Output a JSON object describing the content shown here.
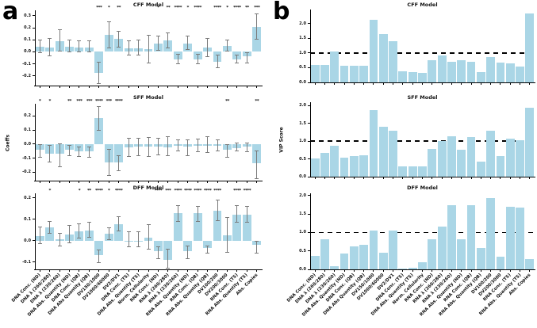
{
  "figure": {
    "panel_a": {
      "label": "a"
    },
    "panel_b": {
      "label": "b"
    }
  },
  "colors": {
    "bar": "#aad6e6",
    "error_bar": "#7a7a7a",
    "ref_line": "#000000",
    "axis": "#000000",
    "text": "#111111"
  },
  "categories": [
    "DNA Conc. (ND)",
    "DNA λ (260/280)",
    "DNA λ (230/260)",
    "DNA Abs. Quantity (ND)",
    "DNA Conc. (QB)",
    "DNA Abs Quantity (QB)",
    "DV150/1000",
    "DV1000/60000",
    "DV2/DV1",
    "DNA Conc. (TS)",
    "DNA Abs. Quantity (TS)",
    "Norm. Cellularity",
    "RNA Conc. (ND)",
    "RNA λ (260/280)",
    "RNA λ (230/260)",
    "RNA Abs. Quantity (ND)",
    "RNA Conc. (QB)",
    "RNA Abs. Quantity (QB)",
    "DV100/200",
    "DV200/3000",
    "RNA Conc. (TS)",
    "RNA Abs. Quantity (TS)",
    "Abs. Copies"
  ],
  "chart_data": [
    {
      "id": "a-cff",
      "panel": "a",
      "type": "bar",
      "title": "CFF Model",
      "ylabel": "",
      "yticks": [
        "0.3",
        "0.2",
        "0.1",
        "0.0",
        "-0.1",
        "-0.2"
      ],
      "ylim": [
        -0.281,
        0.333
      ],
      "grid": false,
      "values": [
        0.04,
        0.035,
        0.09,
        0.04,
        0.035,
        0.035,
        -0.175,
        0.14,
        0.11,
        0.03,
        0.03,
        0.025,
        0.07,
        0.095,
        -0.06,
        0.07,
        -0.06,
        0.035,
        -0.08,
        0.05,
        -0.06,
        -0.035,
        0.21
      ],
      "err_low": [
        -0.01,
        -0.035,
        0.005,
        0.0,
        0.0,
        0.0,
        -0.265,
        0.03,
        0.04,
        -0.03,
        -0.03,
        -0.095,
        0.01,
        0.03,
        -0.1,
        0.02,
        -0.1,
        -0.04,
        -0.13,
        0.005,
        -0.095,
        -0.09,
        0.105
      ],
      "err_high": [
        0.1,
        0.11,
        0.185,
        0.1,
        0.09,
        0.09,
        -0.085,
        0.25,
        0.17,
        0.095,
        0.1,
        0.14,
        0.13,
        0.16,
        -0.02,
        0.13,
        -0.02,
        0.11,
        -0.03,
        0.1,
        -0.025,
        -0.01,
        0.315
      ],
      "significance": [
        "",
        "",
        "",
        "",
        "",
        "",
        "***",
        "*",
        "**",
        "",
        "",
        "",
        "*",
        "**",
        "****",
        "*",
        "****",
        "",
        "****",
        "*",
        "****",
        "**",
        "***"
      ]
    },
    {
      "id": "a-sff",
      "panel": "a",
      "type": "bar",
      "title": "SFF Model",
      "ylabel": "Coeffs",
      "yticks": [
        "0.2",
        "0.1",
        "0.0",
        "-0.1",
        "-0.2"
      ],
      "ylim": [
        -0.26,
        0.275
      ],
      "grid": false,
      "values": [
        -0.04,
        -0.07,
        -0.07,
        -0.04,
        -0.05,
        -0.05,
        0.185,
        -0.13,
        -0.13,
        -0.025,
        -0.02,
        -0.02,
        -0.02,
        -0.025,
        -0.015,
        -0.02,
        -0.015,
        -0.01,
        -0.015,
        -0.04,
        -0.03,
        -0.02,
        -0.135
      ],
      "err_low": [
        -0.095,
        -0.13,
        -0.16,
        -0.085,
        -0.09,
        -0.095,
        0.1,
        -0.225,
        -0.19,
        -0.09,
        -0.085,
        -0.09,
        -0.075,
        -0.085,
        -0.05,
        -0.08,
        -0.055,
        -0.06,
        -0.05,
        -0.095,
        -0.05,
        -0.055,
        -0.245
      ],
      "err_high": [
        -0.005,
        -0.01,
        0.0,
        -0.01,
        -0.02,
        -0.02,
        0.265,
        -0.04,
        -0.085,
        0.04,
        0.04,
        0.045,
        0.04,
        0.05,
        0.03,
        0.03,
        0.035,
        0.055,
        0.03,
        -0.005,
        0.01,
        0.005,
        -0.05
      ],
      "significance": [
        "*",
        "*",
        "",
        "**",
        "***",
        "***",
        "****",
        "***",
        "****",
        "",
        "",
        "",
        "",
        "",
        "",
        "",
        "",
        "",
        "",
        "**",
        "",
        "",
        "**"
      ]
    },
    {
      "id": "a-dff",
      "panel": "a",
      "type": "bar",
      "title": "DFF Model",
      "ylabel": "",
      "yticks": [
        "0.2",
        "0.1",
        "0.0",
        "-0.1"
      ],
      "ylim": [
        -0.135,
        0.214
      ],
      "grid": false,
      "values": [
        0.02,
        0.06,
        0.005,
        0.03,
        0.045,
        0.048,
        -0.07,
        0.032,
        0.078,
        0.0,
        0.0,
        0.015,
        -0.05,
        -0.09,
        0.13,
        -0.05,
        0.13,
        -0.035,
        0.14,
        0.025,
        0.12,
        0.12,
        -0.02
      ],
      "err_low": [
        -0.015,
        0.035,
        -0.025,
        -0.01,
        0.01,
        0.015,
        -0.105,
        0.005,
        0.045,
        -0.03,
        -0.03,
        -0.04,
        -0.085,
        -0.13,
        0.09,
        -0.085,
        0.09,
        -0.06,
        0.095,
        -0.055,
        0.085,
        0.085,
        -0.06
      ],
      "err_high": [
        0.065,
        0.088,
        0.035,
        0.07,
        0.08,
        0.085,
        -0.045,
        0.06,
        0.112,
        0.04,
        0.04,
        0.073,
        -0.03,
        -0.04,
        0.165,
        -0.025,
        0.16,
        -0.025,
        0.19,
        0.11,
        0.165,
        0.16,
        -0.005
      ],
      "significance": [
        "",
        "*",
        "",
        "",
        "*",
        "**",
        "****",
        "*",
        "****",
        "",
        "",
        "",
        "****",
        "***",
        "****",
        "****",
        "****",
        "****",
        "****",
        "",
        "****",
        "****",
        ""
      ]
    },
    {
      "id": "b-cff",
      "panel": "b",
      "type": "bar",
      "title": "CFF Model",
      "ylabel": "",
      "yticks": [
        "2.0",
        "1.5",
        "1.0",
        "0.5",
        "0.0"
      ],
      "ylim": [
        0,
        2.42
      ],
      "ref_line": 1.0,
      "grid": false,
      "values": [
        0.58,
        0.6,
        1.05,
        0.57,
        0.56,
        0.57,
        2.12,
        1.65,
        1.4,
        0.37,
        0.36,
        0.31,
        0.74,
        0.91,
        0.71,
        0.74,
        0.7,
        0.34,
        0.87,
        0.66,
        0.64,
        0.54,
        2.33
      ]
    },
    {
      "id": "b-sff",
      "panel": "b",
      "type": "bar",
      "title": "SFF Model",
      "ylabel": "VIP Score",
      "yticks": [
        "2.0",
        "1.5",
        "1.0",
        "0.5",
        "0.0"
      ],
      "ylim": [
        0,
        2.05
      ],
      "ref_line": 1.0,
      "grid": false,
      "values": [
        0.52,
        0.67,
        0.88,
        0.54,
        0.59,
        0.61,
        1.87,
        1.4,
        1.3,
        0.3,
        0.29,
        0.28,
        0.77,
        1.0,
        1.13,
        0.76,
        1.12,
        0.43,
        1.29,
        0.58,
        1.08,
        1.03,
        1.94
      ]
    },
    {
      "id": "b-dff",
      "panel": "b",
      "type": "bar",
      "title": "DFF Model",
      "ylabel": "",
      "yticks": [
        "2.0",
        "1.5",
        "1.0",
        "0.5",
        "0.0"
      ],
      "ylim": [
        0,
        2.02
      ],
      "ref_line": 1.0,
      "grid": false,
      "values": [
        0.36,
        0.82,
        0.09,
        0.42,
        0.63,
        0.67,
        1.06,
        0.45,
        1.05,
        0.02,
        0.04,
        0.2,
        0.82,
        1.15,
        1.75,
        0.81,
        1.73,
        0.59,
        1.93,
        0.35,
        1.69,
        1.67,
        0.28
      ]
    }
  ]
}
